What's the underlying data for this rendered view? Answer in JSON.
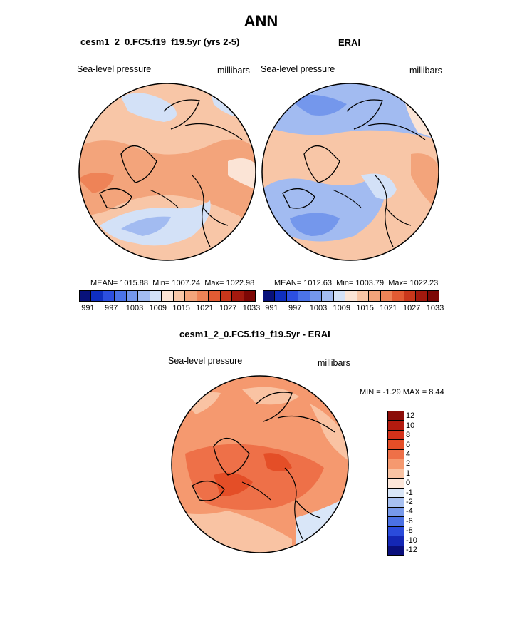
{
  "figure": {
    "title": "ANN",
    "panels": [
      {
        "case": "cesm1_2_0.FC5.f19_f19.5yr (yrs 2-5)",
        "variable": "Sea-level pressure",
        "units": "millibars",
        "stats": {
          "mean": "MEAN= 1015.88",
          "min": "Min= 1007.24",
          "max": "Max= 1022.98"
        }
      },
      {
        "case": "ERAI",
        "variable": "Sea-level pressure",
        "units": "millibars",
        "stats": {
          "mean": "MEAN= 1012.63",
          "min": "Min= 1003.79",
          "max": "Max= 1022.23"
        }
      },
      {
        "case": "cesm1_2_0.FC5.f19_f19.5yr - ERAI",
        "variable": "Sea-level pressure",
        "units": "millibars",
        "stats": {
          "minmax": "MIN =  -1.29 MAX =  8.44"
        }
      }
    ],
    "colorbar_abs": {
      "labels": [
        "991",
        "997",
        "1003",
        "1009",
        "1015",
        "1021",
        "1027",
        "1033"
      ],
      "colors": [
        "#08127a",
        "#0f2fbf",
        "#2c4fe0",
        "#4b73e8",
        "#7497ec",
        "#a2bbf1",
        "#d3e1f7",
        "#fbe4d6",
        "#f8c6a7",
        "#f3a47b",
        "#ee8357",
        "#e25b33",
        "#c9371b",
        "#a3190e",
        "#7d0705"
      ]
    },
    "colorbar_diff": {
      "labels": [
        "12",
        "10",
        "8",
        "6",
        "4",
        "2",
        "1",
        "0",
        "-1",
        "-2",
        "-4",
        "-6",
        "-8",
        "-10",
        "-12"
      ],
      "colors": [
        "#8b0c08",
        "#b31b0f",
        "#d4321a",
        "#e44e27",
        "#ee7048",
        "#f5996f",
        "#f9c3a3",
        "#fde7da",
        "#d9e6f8",
        "#a7c0f1",
        "#7799ea",
        "#4b71e4",
        "#2a4bdb",
        "#1427b5",
        "#0a0f7c"
      ]
    }
  }
}
